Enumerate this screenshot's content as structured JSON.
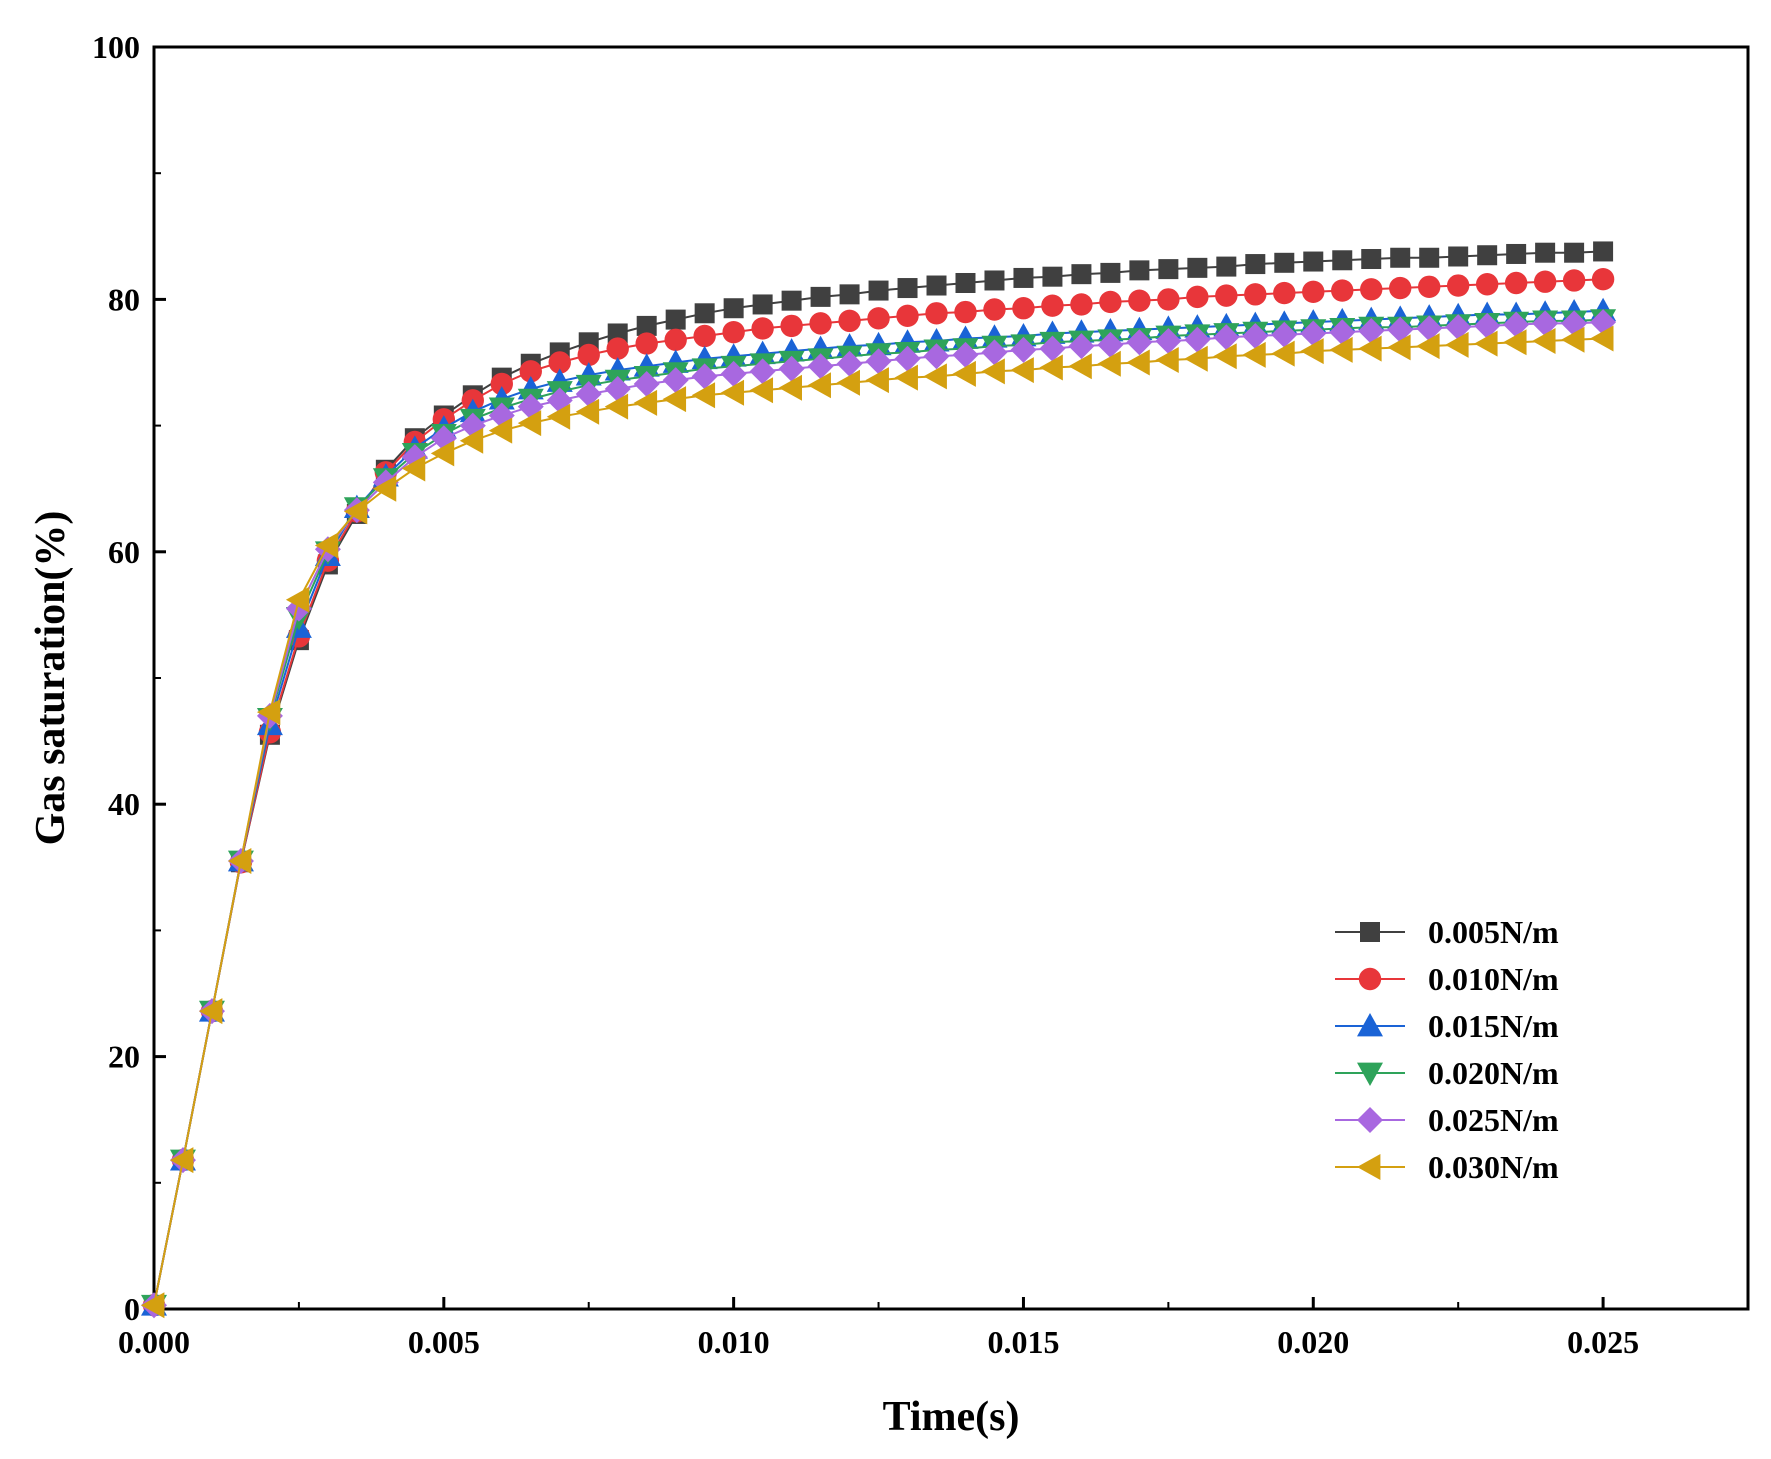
{
  "chart_data": {
    "type": "line",
    "title": "",
    "xlabel": "Time(s)",
    "ylabel": "Gas saturation(%)",
    "xlim": [
      0,
      0.0275
    ],
    "ylim": [
      0,
      100
    ],
    "xticks": [
      0.0,
      0.005,
      0.01,
      0.015,
      0.02,
      0.025
    ],
    "xtick_labels": [
      "0.000",
      "0.005",
      "0.010",
      "0.015",
      "0.020",
      "0.025"
    ],
    "yticks": [
      0,
      20,
      40,
      60,
      80,
      100
    ],
    "ytick_labels": [
      "0",
      "20",
      "40",
      "60",
      "80",
      "100"
    ],
    "legend_position": "bottom-right",
    "x": [
      0.0,
      0.0005,
      0.001,
      0.0015,
      0.002,
      0.0025,
      0.003,
      0.0035,
      0.004,
      0.0045,
      0.005,
      0.0055,
      0.006,
      0.0065,
      0.007,
      0.0075,
      0.008,
      0.0085,
      0.009,
      0.0095,
      0.01,
      0.0105,
      0.011,
      0.0115,
      0.012,
      0.0125,
      0.013,
      0.0135,
      0.014,
      0.0145,
      0.015,
      0.0155,
      0.016,
      0.0165,
      0.017,
      0.0175,
      0.018,
      0.0185,
      0.019,
      0.0195,
      0.02,
      0.0205,
      0.021,
      0.0215,
      0.022,
      0.0225,
      0.023,
      0.0235,
      0.024,
      0.0245,
      0.025
    ],
    "series": [
      {
        "name": "0.005N/m",
        "color": "#404040",
        "marker": "square",
        "values": [
          0.3,
          11.8,
          23.6,
          35.4,
          45.5,
          53.0,
          59.0,
          63.0,
          66.5,
          69.0,
          70.8,
          72.4,
          73.8,
          74.9,
          75.8,
          76.6,
          77.3,
          77.9,
          78.4,
          78.9,
          79.3,
          79.6,
          79.9,
          80.2,
          80.4,
          80.7,
          80.9,
          81.1,
          81.3,
          81.5,
          81.7,
          81.8,
          82.0,
          82.1,
          82.3,
          82.4,
          82.5,
          82.6,
          82.8,
          82.9,
          83.0,
          83.1,
          83.2,
          83.3,
          83.3,
          83.4,
          83.5,
          83.6,
          83.7,
          83.7,
          83.8
        ]
      },
      {
        "name": "0.010N/m",
        "color": "#e8363a",
        "marker": "circle",
        "values": [
          0.3,
          11.8,
          23.6,
          35.4,
          45.7,
          53.3,
          59.3,
          63.2,
          66.3,
          68.7,
          70.5,
          72.0,
          73.3,
          74.3,
          75.0,
          75.6,
          76.1,
          76.5,
          76.8,
          77.1,
          77.4,
          77.7,
          77.9,
          78.1,
          78.3,
          78.5,
          78.7,
          78.9,
          79.0,
          79.2,
          79.3,
          79.5,
          79.6,
          79.8,
          79.9,
          80.0,
          80.2,
          80.3,
          80.4,
          80.5,
          80.6,
          80.7,
          80.8,
          80.9,
          81.0,
          81.1,
          81.2,
          81.3,
          81.4,
          81.5,
          81.6
        ]
      },
      {
        "name": "0.015N/m",
        "color": "#1a63d6",
        "marker": "triangle-up",
        "values": [
          0.3,
          11.8,
          23.6,
          35.5,
          46.3,
          54.0,
          59.7,
          63.5,
          66.0,
          68.2,
          69.8,
          71.1,
          72.1,
          72.9,
          73.5,
          74.0,
          74.4,
          74.7,
          75.0,
          75.3,
          75.5,
          75.7,
          75.9,
          76.1,
          76.3,
          76.4,
          76.6,
          76.7,
          76.9,
          77.0,
          77.1,
          77.3,
          77.4,
          77.5,
          77.6,
          77.7,
          77.8,
          77.9,
          78.0,
          78.1,
          78.2,
          78.3,
          78.4,
          78.5,
          78.6,
          78.7,
          78.8,
          78.8,
          78.9,
          79.0,
          79.1
        ]
      },
      {
        "name": "0.020N/m",
        "color": "#2ea35a",
        "marker": "triangle-down",
        "values": [
          0.3,
          11.8,
          23.6,
          35.5,
          46.8,
          54.8,
          60.0,
          63.5,
          65.8,
          67.8,
          69.3,
          70.5,
          71.4,
          72.1,
          72.7,
          73.2,
          73.6,
          73.9,
          74.2,
          74.5,
          74.7,
          74.9,
          75.1,
          75.3,
          75.5,
          75.7,
          75.8,
          76.0,
          76.1,
          76.3,
          76.4,
          76.6,
          76.7,
          76.8,
          76.9,
          77.1,
          77.2,
          77.3,
          77.4,
          77.5,
          77.6,
          77.7,
          77.8,
          77.8,
          77.9,
          78.0,
          78.1,
          78.2,
          78.3,
          78.3,
          78.4
        ]
      },
      {
        "name": "0.025N/m",
        "color": "#a868e0",
        "marker": "diamond",
        "values": [
          0.3,
          11.8,
          23.6,
          35.5,
          47.0,
          55.5,
          60.2,
          63.3,
          65.5,
          67.5,
          69.0,
          70.0,
          70.8,
          71.5,
          72.0,
          72.5,
          72.9,
          73.3,
          73.6,
          73.9,
          74.1,
          74.3,
          74.5,
          74.7,
          74.9,
          75.1,
          75.3,
          75.5,
          75.6,
          75.8,
          76.0,
          76.1,
          76.3,
          76.4,
          76.6,
          76.7,
          76.8,
          77.0,
          77.1,
          77.2,
          77.3,
          77.4,
          77.5,
          77.6,
          77.7,
          77.8,
          77.9,
          78.0,
          78.1,
          78.1,
          78.2
        ]
      },
      {
        "name": "0.030N/m",
        "color": "#d4a010",
        "marker": "triangle-left",
        "values": [
          0.3,
          11.8,
          23.6,
          35.5,
          47.3,
          56.2,
          60.5,
          63.2,
          65.0,
          66.6,
          67.8,
          68.8,
          69.6,
          70.2,
          70.7,
          71.1,
          71.5,
          71.8,
          72.1,
          72.4,
          72.6,
          72.8,
          73.0,
          73.2,
          73.4,
          73.6,
          73.8,
          73.9,
          74.1,
          74.3,
          74.4,
          74.6,
          74.7,
          74.9,
          75.0,
          75.2,
          75.3,
          75.5,
          75.6,
          75.7,
          75.9,
          76.0,
          76.1,
          76.2,
          76.3,
          76.4,
          76.5,
          76.6,
          76.7,
          76.8,
          76.9
        ]
      }
    ]
  }
}
